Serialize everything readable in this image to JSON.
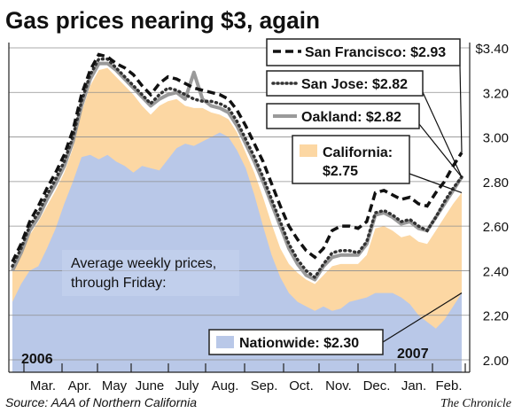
{
  "chart_data": {
    "type": "area",
    "title": "Gas prices nearing $3, again",
    "annotation": "Average weekly prices, through Friday:",
    "source": "Source: AAA of Northern California",
    "credit": "The Chronicle",
    "year_labels": [
      "2006",
      "2007"
    ],
    "month_labels": [
      "Mar.",
      "Apr.",
      "May",
      "June",
      "July",
      "Aug.",
      "Sep.",
      "Oct.",
      "Nov.",
      "Dec.",
      "Jan.",
      "Feb."
    ],
    "y_ticks": [
      "2.00",
      "2.20",
      "2.40",
      "2.60",
      "2.80",
      "3.00",
      "3.20",
      "$3.40"
    ],
    "ylim": [
      2.0,
      3.4
    ],
    "grid": true,
    "colors": {
      "california_fill": "#fcd7a3",
      "nationwide_fill": "#b9c8e8",
      "san_francisco": "#111111",
      "san_jose": "#333333",
      "oakland": "#9a9a9a",
      "grid": "#8f8f8f"
    },
    "x": [
      "2006-02-17",
      "2006-02-24",
      "2006-03-03",
      "2006-03-10",
      "2006-03-17",
      "2006-03-24",
      "2006-03-31",
      "2006-04-07",
      "2006-04-14",
      "2006-04-21",
      "2006-04-28",
      "2006-05-05",
      "2006-05-12",
      "2006-05-19",
      "2006-05-26",
      "2006-06-02",
      "2006-06-09",
      "2006-06-16",
      "2006-06-23",
      "2006-06-30",
      "2006-07-07",
      "2006-07-14",
      "2006-07-21",
      "2006-07-28",
      "2006-08-04",
      "2006-08-11",
      "2006-08-18",
      "2006-08-25",
      "2006-09-01",
      "2006-09-08",
      "2006-09-15",
      "2006-09-22",
      "2006-09-29",
      "2006-10-06",
      "2006-10-13",
      "2006-10-20",
      "2006-10-27",
      "2006-11-03",
      "2006-11-10",
      "2006-11-17",
      "2006-11-24",
      "2006-12-01",
      "2006-12-08",
      "2006-12-15",
      "2006-12-22",
      "2006-12-29",
      "2007-01-05",
      "2007-01-12",
      "2007-01-19",
      "2007-01-26",
      "2007-02-02",
      "2007-02-09",
      "2007-02-16"
    ],
    "series": [
      {
        "name": "San Francisco",
        "label": "San Francisco: $2.93",
        "style": "dashed",
        "values": [
          2.44,
          2.52,
          2.62,
          2.69,
          2.77,
          2.84,
          2.92,
          3.03,
          3.19,
          3.3,
          3.37,
          3.36,
          3.33,
          3.31,
          3.28,
          3.23,
          3.19,
          3.24,
          3.27,
          3.26,
          3.24,
          3.22,
          3.21,
          3.2,
          3.19,
          3.17,
          3.12,
          3.05,
          2.97,
          2.89,
          2.79,
          2.69,
          2.6,
          2.54,
          2.49,
          2.46,
          2.5,
          2.58,
          2.6,
          2.6,
          2.59,
          2.62,
          2.75,
          2.76,
          2.74,
          2.72,
          2.73,
          2.7,
          2.69,
          2.75,
          2.8,
          2.87,
          2.93
        ]
      },
      {
        "name": "San Jose",
        "label": "San Jose: $2.82",
        "style": "dotted",
        "values": [
          2.42,
          2.5,
          2.6,
          2.66,
          2.74,
          2.81,
          2.89,
          3.0,
          3.16,
          3.28,
          3.35,
          3.35,
          3.31,
          3.27,
          3.23,
          3.19,
          3.15,
          3.19,
          3.22,
          3.21,
          3.19,
          3.17,
          3.16,
          3.16,
          3.15,
          3.13,
          3.07,
          2.99,
          2.91,
          2.82,
          2.72,
          2.62,
          2.52,
          2.45,
          2.4,
          2.37,
          2.43,
          2.48,
          2.49,
          2.49,
          2.48,
          2.53,
          2.66,
          2.67,
          2.65,
          2.62,
          2.63,
          2.6,
          2.58,
          2.64,
          2.71,
          2.77,
          2.82
        ]
      },
      {
        "name": "Oakland",
        "label": "Oakland: $2.82",
        "style": "solid",
        "values": [
          2.4,
          2.48,
          2.58,
          2.64,
          2.72,
          2.79,
          2.87,
          2.98,
          3.14,
          3.26,
          3.33,
          3.33,
          3.3,
          3.26,
          3.22,
          3.18,
          3.14,
          3.17,
          3.19,
          3.2,
          3.17,
          3.29,
          3.17,
          3.14,
          3.13,
          3.11,
          3.05,
          2.97,
          2.89,
          2.8,
          2.7,
          2.6,
          2.5,
          2.43,
          2.38,
          2.36,
          2.42,
          2.46,
          2.47,
          2.47,
          2.47,
          2.52,
          2.65,
          2.66,
          2.64,
          2.61,
          2.62,
          2.59,
          2.58,
          2.64,
          2.7,
          2.76,
          2.82
        ]
      },
      {
        "name": "California",
        "label_line1": "California:",
        "label_line2": "$2.75",
        "style": "area",
        "values": [
          2.4,
          2.47,
          2.56,
          2.62,
          2.69,
          2.76,
          2.84,
          2.95,
          3.11,
          3.23,
          3.3,
          3.31,
          3.27,
          3.23,
          3.19,
          3.14,
          3.1,
          3.14,
          3.16,
          3.17,
          3.14,
          3.13,
          3.13,
          3.11,
          3.1,
          3.08,
          3.02,
          2.93,
          2.84,
          2.73,
          2.61,
          2.5,
          2.43,
          2.39,
          2.36,
          2.34,
          2.38,
          2.42,
          2.43,
          2.43,
          2.43,
          2.47,
          2.59,
          2.6,
          2.58,
          2.55,
          2.56,
          2.53,
          2.52,
          2.58,
          2.64,
          2.7,
          2.75
        ]
      },
      {
        "name": "Nationwide",
        "label": "Nationwide: $2.30",
        "style": "area",
        "values": [
          2.26,
          2.34,
          2.4,
          2.42,
          2.5,
          2.59,
          2.7,
          2.8,
          2.91,
          2.92,
          2.9,
          2.92,
          2.89,
          2.87,
          2.84,
          2.87,
          2.86,
          2.85,
          2.9,
          2.95,
          2.97,
          2.96,
          2.98,
          3.0,
          3.02,
          3.0,
          2.94,
          2.86,
          2.74,
          2.6,
          2.47,
          2.37,
          2.3,
          2.26,
          2.24,
          2.22,
          2.24,
          2.22,
          2.23,
          2.26,
          2.27,
          2.28,
          2.3,
          2.3,
          2.3,
          2.28,
          2.25,
          2.2,
          2.17,
          2.14,
          2.18,
          2.24,
          2.3
        ]
      }
    ]
  }
}
